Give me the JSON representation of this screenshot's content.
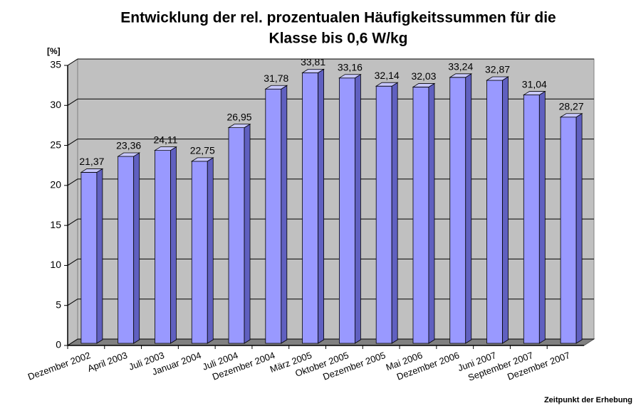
{
  "chart_data": {
    "type": "bar3d",
    "title": [
      "Entwicklung der rel. prozentualen Häufigkeitssummen für die",
      "Klasse bis 0,6 W/kg"
    ],
    "y_label": "[%]",
    "x_label": "Zeitpunkt der Erhebung",
    "categories": [
      "Dezember 2002",
      "April 2003",
      "Juli 2003",
      "Januar 2004",
      "Juli 2004",
      "Dezember 2004",
      "März 2005",
      "Oktober 2005",
      "Dezember 2005",
      "Mai 2006",
      "Dezember 2006",
      "Juni 2007",
      "September 2007",
      "Dezember 2007"
    ],
    "values": [
      21.37,
      23.36,
      24.11,
      22.75,
      26.95,
      31.78,
      33.81,
      33.16,
      32.14,
      32.03,
      33.24,
      32.87,
      31.04,
      28.27
    ],
    "value_labels": [
      "21,37",
      "23,36",
      "24,11",
      "22,75",
      "26,95",
      "31,78",
      "33,81",
      "33,16",
      "32,14",
      "32,03",
      "33,24",
      "32,87",
      "31,04",
      "28,27"
    ],
    "color": "#9999ff",
    "ylim": [
      0,
      35
    ],
    "yticks": [
      0,
      5,
      10,
      15,
      20,
      25,
      30,
      35
    ],
    "grid": true
  }
}
